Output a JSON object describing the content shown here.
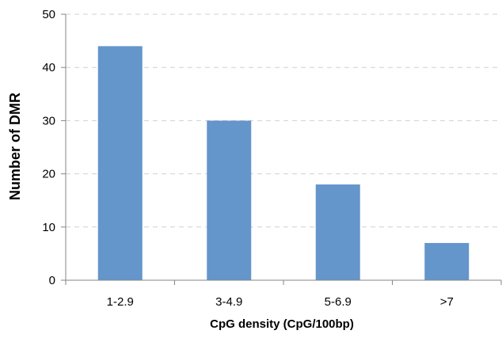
{
  "chart_data": {
    "type": "bar",
    "title": "",
    "xlabel": "CpG density (CpG/100bp)",
    "ylabel": "Number of DMR",
    "categories": [
      "1-2.9",
      "3-4.9",
      "5-6.9",
      ">7"
    ],
    "values": [
      44,
      30,
      18,
      7
    ],
    "ylim": [
      0,
      50
    ],
    "yticks": [
      0,
      10,
      20,
      30,
      40,
      50
    ],
    "grid": "horizontal dashed",
    "legend": "none",
    "bar_color": "#6495cb",
    "grid_color": "#d0d0d0",
    "axis_color": "#868686"
  }
}
